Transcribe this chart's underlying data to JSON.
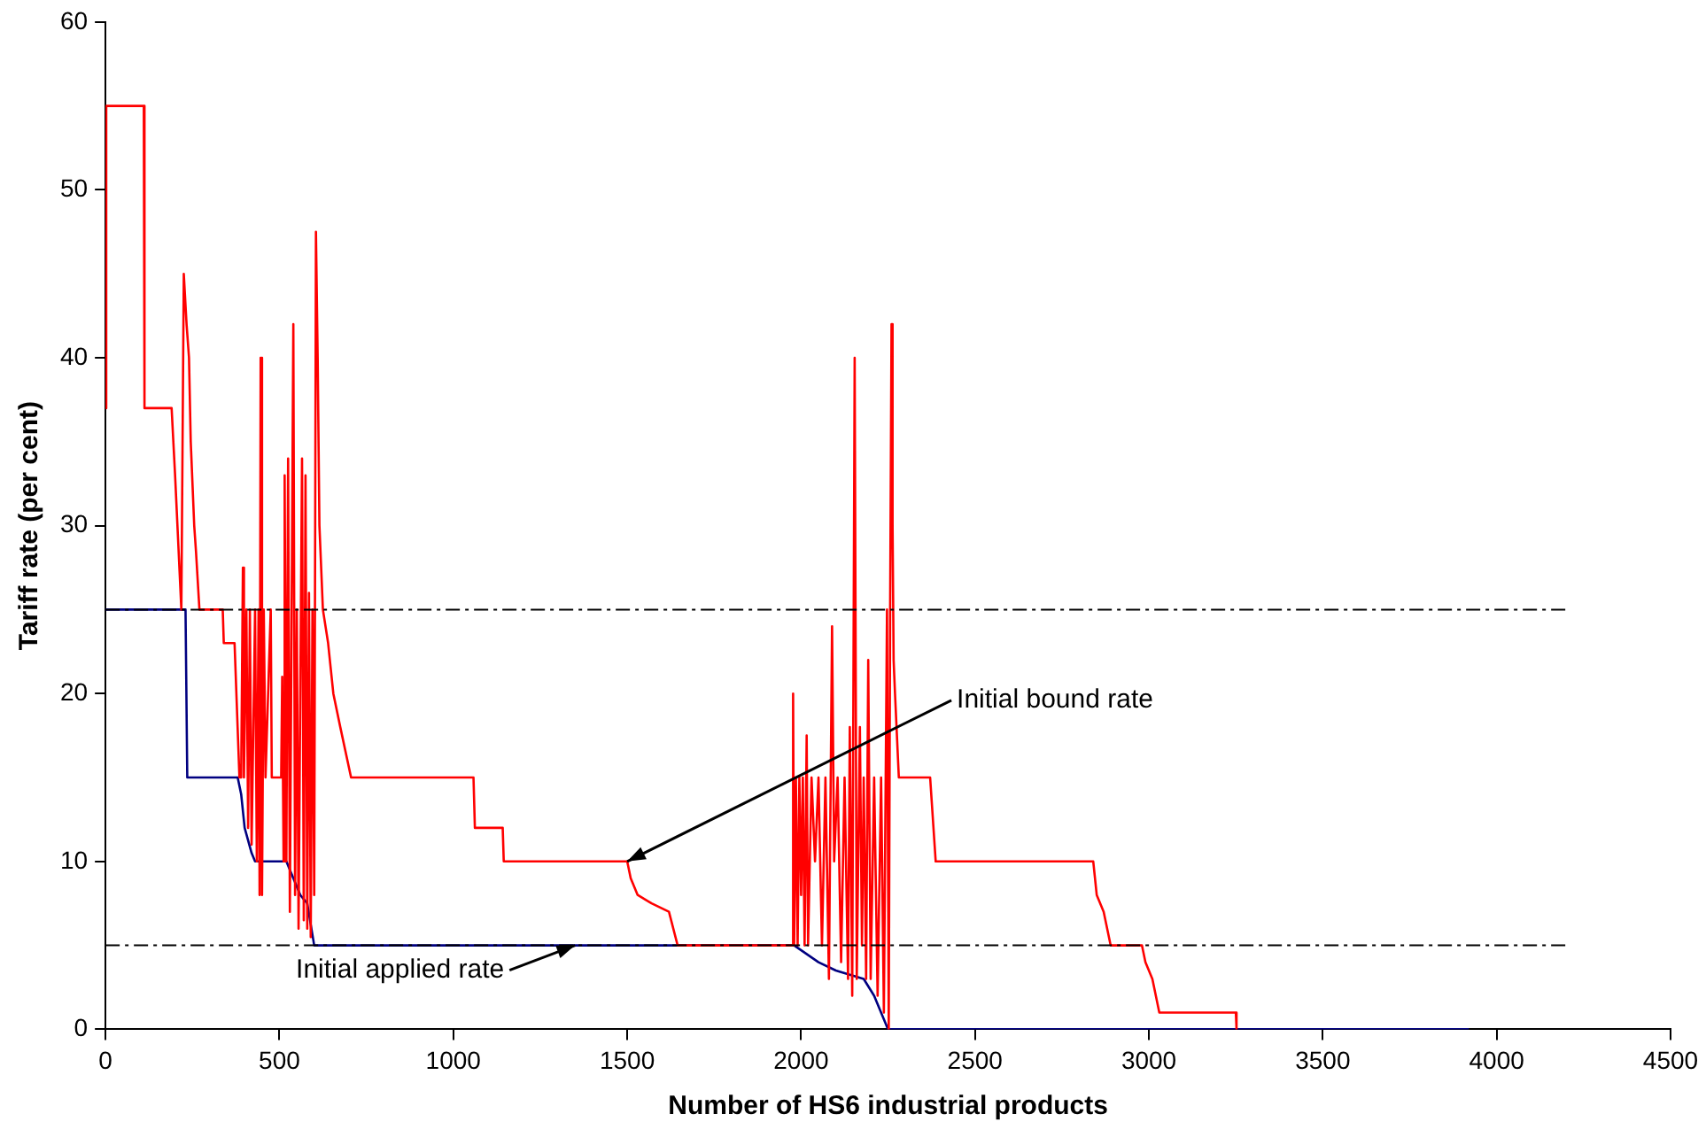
{
  "chart_data": {
    "type": "line",
    "xlabel": "Number of HS6 industrial products",
    "ylabel": "Tariff rate (per cent)",
    "xlim": [
      0,
      4500
    ],
    "xticks": [
      0,
      500,
      1000,
      1500,
      2000,
      2500,
      3000,
      3500,
      4000,
      4500
    ],
    "ylim": [
      0,
      60
    ],
    "yticks": [
      0,
      10,
      20,
      30,
      40,
      50,
      60
    ],
    "grid": false,
    "legend": false,
    "marker": "none",
    "line_style": "solid",
    "series": [
      {
        "color": "#ff0000",
        "x": [
          0,
          2,
          110,
          112,
          190,
          200,
          218,
          225,
          233,
          240,
          245,
          255,
          260,
          270,
          280,
          290,
          337,
          340,
          371,
          385,
          390,
          395,
          398,
          405,
          410,
          415,
          420,
          430,
          435,
          440,
          443,
          446,
          450,
          455,
          460,
          475,
          478,
          505,
          508,
          512,
          515,
          520,
          525,
          530,
          540,
          545,
          550,
          555,
          565,
          570,
          575,
          580,
          585,
          590,
          595,
          600,
          605,
          610,
          615,
          625,
          640,
          655,
          675,
          706,
          1058,
          1062,
          1142,
          1145,
          1500,
          1510,
          1530,
          1570,
          1620,
          1645,
          1975,
          1977,
          1980,
          1985,
          1990,
          1995,
          2000,
          2005,
          2010,
          2016,
          2020,
          2030,
          2040,
          2050,
          2060,
          2070,
          2080,
          2089,
          2095,
          2105,
          2115,
          2125,
          2135,
          2140,
          2147,
          2154,
          2160,
          2169,
          2175,
          2180,
          2187,
          2193,
          2200,
          2210,
          2220,
          2230,
          2238,
          2247,
          2252,
          2256,
          2260,
          2263,
          2266,
          2270,
          2281,
          2371,
          2387,
          2840,
          2850,
          2870,
          2890,
          2980,
          2990,
          3010,
          3020,
          3030,
          3250,
          3252
        ],
        "values": [
          37,
          55,
          55,
          37,
          37,
          33,
          25,
          45,
          42,
          40,
          35,
          30,
          28.5,
          25,
          25,
          25,
          25,
          23,
          23,
          15,
          15,
          27.5,
          15,
          25,
          12,
          25,
          11,
          25,
          10,
          25,
          8,
          40,
          8,
          25,
          15,
          25,
          15,
          15,
          21,
          10,
          33,
          10,
          34,
          7,
          42,
          8,
          25,
          6,
          34,
          6.5,
          33,
          6,
          26,
          5.5,
          25,
          8,
          47.5,
          40,
          30,
          25,
          23,
          20,
          18,
          15,
          15,
          12,
          12,
          10,
          10,
          9,
          8,
          7.5,
          7,
          5,
          5,
          20,
          5,
          15,
          5,
          15,
          8,
          15,
          5,
          17.5,
          5,
          15,
          10,
          15,
          5,
          15,
          3,
          24,
          10,
          15,
          4,
          15,
          3,
          18,
          2,
          40,
          3,
          18,
          5,
          15,
          3,
          22,
          3,
          15,
          2,
          15,
          1,
          25,
          0,
          25,
          42,
          30,
          22,
          20,
          15,
          15,
          10,
          10,
          8,
          7,
          5,
          5,
          4,
          3,
          2,
          1,
          1,
          0
        ]
      },
      {
        "color": "#000080",
        "x": [
          0,
          230,
          235,
          380,
          390,
          400,
          420,
          430,
          520,
          540,
          560,
          580,
          600,
          1980,
          2050,
          2100,
          2180,
          2210,
          2250,
          3920
        ],
        "values": [
          25,
          25,
          15,
          15,
          14,
          12,
          10.5,
          10,
          10,
          9,
          8,
          7.5,
          5,
          5,
          4,
          3.5,
          3,
          2,
          0,
          0
        ]
      }
    ],
    "ref_lines": [
      {
        "axis": "y",
        "value": 25,
        "color": "#000000",
        "line_style": "dashed"
      },
      {
        "axis": "y",
        "value": 5,
        "color": "#000000",
        "line_style": "dashed"
      }
    ],
    "annotations": [
      {
        "text": "Initial bound rate",
        "x": 1500,
        "y": 10
      },
      {
        "text": "Initial applied rate",
        "x": 1350,
        "y": 5
      }
    ]
  }
}
